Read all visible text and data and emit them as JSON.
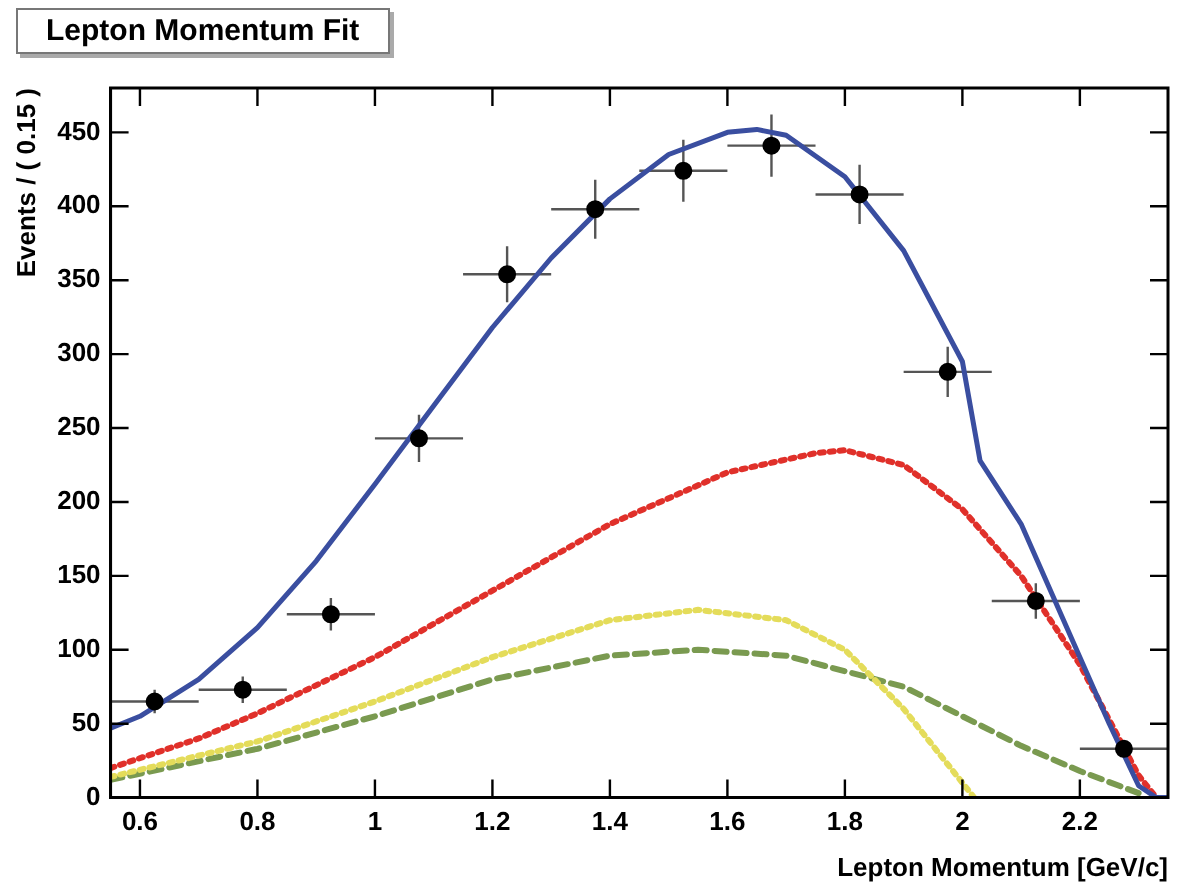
{
  "chart_data": {
    "type": "scatter",
    "title": "Lepton Momentum Fit",
    "xlabel": "Lepton Momentum [GeV/c]",
    "ylabel": "Events / ( 0.15 )",
    "xlim": [
      0.55,
      2.35
    ],
    "xticks": [
      0.6,
      0.8,
      1,
      1.2,
      1.4,
      1.6,
      1.8,
      2,
      2.2
    ],
    "ylim": [
      0,
      480
    ],
    "yticks": [
      0,
      50,
      100,
      150,
      200,
      250,
      300,
      350,
      400,
      450
    ],
    "grid": false,
    "legend": false,
    "series": [
      {
        "type": "line",
        "color": "#3a4ea0",
        "line_style": "solid",
        "marker": "none",
        "x": [
          0.55,
          0.6,
          0.7,
          0.8,
          0.9,
          1.0,
          1.1,
          1.2,
          1.3,
          1.4,
          1.5,
          1.6,
          1.65,
          1.7,
          1.8,
          1.9,
          2.0,
          2.03,
          2.1,
          2.2,
          2.25,
          2.3,
          2.33,
          2.35
        ],
        "values": [
          47,
          55,
          80,
          115,
          160,
          212,
          265,
          318,
          365,
          405,
          435,
          450,
          452,
          448,
          420,
          370,
          295,
          228,
          185,
          95,
          50,
          8,
          0,
          0
        ]
      },
      {
        "type": "line",
        "color": "#e0302a",
        "line_style": "dotted",
        "marker": "none",
        "x": [
          0.55,
          0.7,
          0.8,
          1.0,
          1.2,
          1.4,
          1.6,
          1.75,
          1.8,
          1.9,
          2.0,
          2.1,
          2.2,
          2.3,
          2.33
        ],
        "values": [
          20,
          40,
          57,
          95,
          140,
          185,
          220,
          233,
          235,
          225,
          195,
          150,
          90,
          15,
          0
        ]
      },
      {
        "type": "line",
        "color": "#e4dc5a",
        "line_style": "dotted",
        "marker": "none",
        "x": [
          0.55,
          0.8,
          1.0,
          1.2,
          1.4,
          1.55,
          1.7,
          1.8,
          1.9,
          2.0,
          2.02
        ],
        "values": [
          14,
          38,
          65,
          95,
          120,
          127,
          120,
          100,
          60,
          10,
          0
        ]
      },
      {
        "type": "line",
        "color": "#7a9a50",
        "line_style": "dashed",
        "marker": "none",
        "x": [
          0.55,
          0.8,
          1.0,
          1.2,
          1.4,
          1.55,
          1.7,
          1.9,
          2.0,
          2.1,
          2.2,
          2.3
        ],
        "values": [
          12,
          33,
          55,
          80,
          96,
          100,
          96,
          75,
          55,
          35,
          18,
          3
        ]
      },
      {
        "color": "#000000",
        "marker": "circle",
        "x": [
          0.625,
          0.775,
          0.925,
          1.075,
          1.225,
          1.375,
          1.525,
          1.675,
          1.825,
          1.975,
          2.125,
          2.275
        ],
        "values": [
          65,
          73,
          124,
          243,
          354,
          398,
          424,
          441,
          408,
          288,
          133,
          33
        ],
        "errors": [
          8,
          9,
          11,
          16,
          19,
          20,
          21,
          21,
          20,
          17,
          12,
          6
        ],
        "xerrors": [
          0.075,
          0.075,
          0.075,
          0.075,
          0.075,
          0.075,
          0.075,
          0.075,
          0.075,
          0.075,
          0.075,
          0.075
        ]
      }
    ]
  }
}
